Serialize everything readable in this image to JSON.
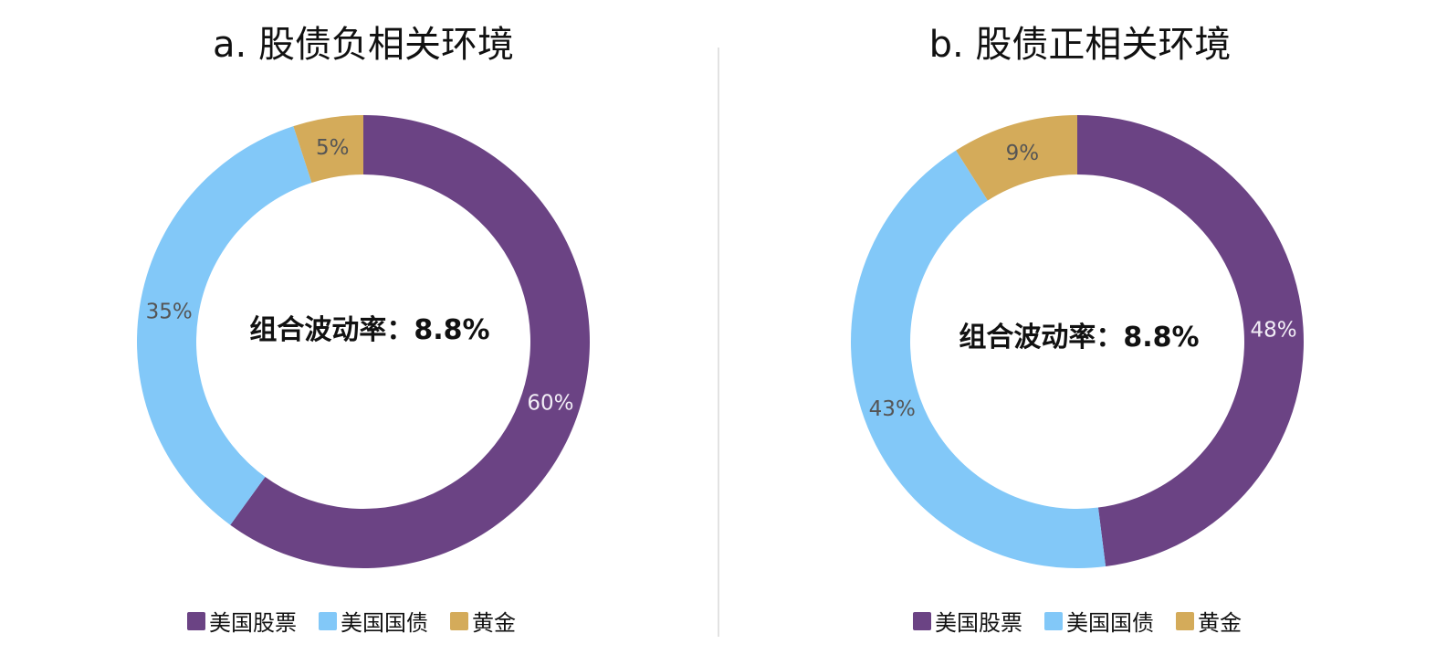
{
  "chart_data": [
    {
      "type": "donut",
      "title": "a. 股债负相关环境",
      "center_label": "组合波动率：8.8%",
      "categories": [
        "美国股票",
        "美国国债",
        "黄金"
      ],
      "values": [
        60,
        35,
        5
      ],
      "value_labels": [
        "60%",
        "35%",
        "5%"
      ],
      "colors": [
        "#6b4384",
        "#82c8f8",
        "#d4ab5a"
      ]
    },
    {
      "type": "donut",
      "title": "b. 股债正相关环境",
      "center_label": "组合波动率：8.8%",
      "categories": [
        "美国股票",
        "美国国债",
        "黄金"
      ],
      "values": [
        48,
        43,
        9
      ],
      "value_labels": [
        "48%",
        "43%",
        "9%"
      ],
      "colors": [
        "#6b4384",
        "#82c8f8",
        "#d4ab5a"
      ]
    }
  ],
  "label_colors": [
    "#f2eef6",
    "#555555",
    "#555555"
  ]
}
